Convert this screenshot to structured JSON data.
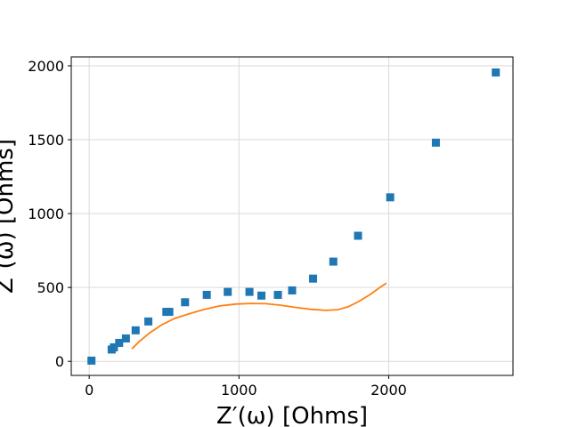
{
  "chart_data": {
    "type": "scatter",
    "xlabel": "Z′(ω) [Ohms]",
    "ylabel": "Z″(ω) [Ohms]",
    "xlim": [
      -120,
      2830
    ],
    "ylim": [
      -95,
      2060
    ],
    "grid": true,
    "x_ticks": [
      {
        "value": 0,
        "label": "0"
      },
      {
        "value": 1000,
        "label": "1000"
      },
      {
        "value": 2000,
        "label": "2000"
      }
    ],
    "y_ticks": [
      {
        "value": 0,
        "label": "0"
      },
      {
        "value": 500,
        "label": "500"
      },
      {
        "value": 1000,
        "label": "1000"
      },
      {
        "value": 1500,
        "label": "1500"
      },
      {
        "value": 2000,
        "label": "2000"
      }
    ],
    "series": [
      {
        "type": "scatter",
        "marker": "square",
        "color": "#1f77b4",
        "points": [
          [
            15,
            5
          ],
          [
            150,
            80
          ],
          [
            165,
            95
          ],
          [
            200,
            125
          ],
          [
            245,
            155
          ],
          [
            310,
            210
          ],
          [
            395,
            270
          ],
          [
            515,
            335
          ],
          [
            535,
            335
          ],
          [
            640,
            400
          ],
          [
            785,
            450
          ],
          [
            925,
            470
          ],
          [
            1070,
            470
          ],
          [
            1150,
            445
          ],
          [
            1260,
            450
          ],
          [
            1355,
            480
          ],
          [
            1495,
            560
          ],
          [
            1630,
            675
          ],
          [
            1795,
            850
          ],
          [
            2010,
            1110
          ],
          [
            2315,
            1480
          ],
          [
            2715,
            1955
          ]
        ]
      },
      {
        "type": "line",
        "color": "#ff7f0e",
        "points": [
          [
            285,
            85
          ],
          [
            330,
            130
          ],
          [
            400,
            190
          ],
          [
            480,
            245
          ],
          [
            570,
            290
          ],
          [
            660,
            320
          ],
          [
            760,
            350
          ],
          [
            870,
            375
          ],
          [
            980,
            388
          ],
          [
            1080,
            392
          ],
          [
            1180,
            390
          ],
          [
            1280,
            380
          ],
          [
            1380,
            365
          ],
          [
            1480,
            352
          ],
          [
            1580,
            345
          ],
          [
            1660,
            350
          ],
          [
            1730,
            370
          ],
          [
            1800,
            405
          ],
          [
            1880,
            455
          ],
          [
            1940,
            500
          ],
          [
            1985,
            530
          ]
        ]
      }
    ]
  }
}
